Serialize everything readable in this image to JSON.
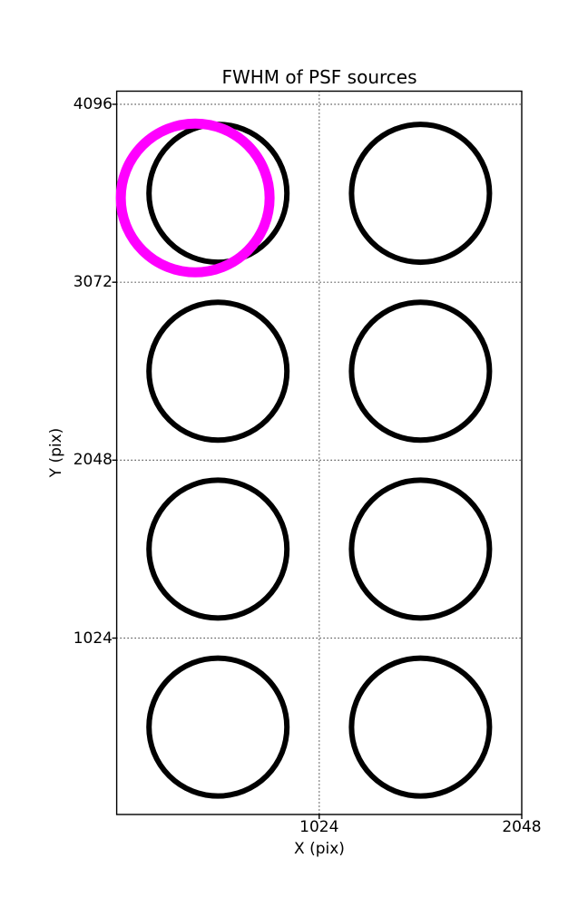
{
  "figure": {
    "title": "FWHM of PSF sources",
    "background_color": "#ffffff",
    "foreground_color": "#000000"
  },
  "axes": {
    "xlabel": "X (pix)",
    "ylabel": "Y (pix)",
    "x_tick_values": [
      1024,
      2048
    ],
    "y_tick_values": [
      4096,
      3072,
      2048,
      1024
    ],
    "grid_style": "dotted",
    "spine_color": "#000000"
  },
  "chart_data": {
    "type": "scatter",
    "title": "FWHM of PSF sources",
    "xlabel": "X (pix)",
    "ylabel": "Y (pix)",
    "xlim": [
      0,
      2048
    ],
    "ylim": [
      0,
      4171
    ],
    "grid": true,
    "legend": false,
    "marker_shape": "open-circle",
    "points": [
      {
        "x": 512,
        "y": 3584,
        "radius_px": 76,
        "stroke_px": 6,
        "color": "#000000",
        "name": "psf-source-circle"
      },
      {
        "x": 1536,
        "y": 3584,
        "radius_px": 76,
        "stroke_px": 6,
        "color": "#000000",
        "name": "psf-source-circle"
      },
      {
        "x": 512,
        "y": 2560,
        "radius_px": 76,
        "stroke_px": 6,
        "color": "#000000",
        "name": "psf-source-circle"
      },
      {
        "x": 1536,
        "y": 2560,
        "radius_px": 76,
        "stroke_px": 6,
        "color": "#000000",
        "name": "psf-source-circle"
      },
      {
        "x": 512,
        "y": 1536,
        "radius_px": 76,
        "stroke_px": 6,
        "color": "#000000",
        "name": "psf-source-circle"
      },
      {
        "x": 1536,
        "y": 1536,
        "radius_px": 76,
        "stroke_px": 6,
        "color": "#000000",
        "name": "psf-source-circle"
      },
      {
        "x": 512,
        "y": 512,
        "radius_px": 76,
        "stroke_px": 6,
        "color": "#000000",
        "name": "psf-source-circle"
      },
      {
        "x": 1536,
        "y": 512,
        "radius_px": 76,
        "stroke_px": 6,
        "color": "#000000",
        "name": "psf-source-circle"
      },
      {
        "x": 397,
        "y": 3557,
        "radius_px": 82,
        "stroke_px": 11,
        "color": "#ff00ff",
        "name": "highlighted-psf-source-circle"
      }
    ],
    "highlight_color": "#ff00ff"
  }
}
